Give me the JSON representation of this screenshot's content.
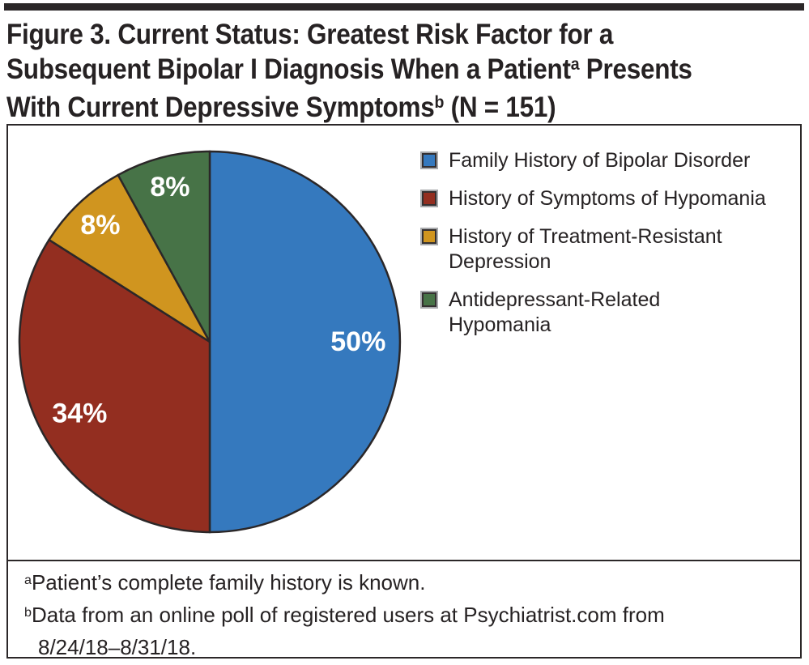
{
  "title": {
    "line1": "Figure 3. Current Status: Greatest Risk Factor for a",
    "line2_pre": "Subsequent Bipolar I Diagnosis When a Patient",
    "line2_sup": "a",
    "line2_post": " Presents",
    "line3_pre": "With Current Depressive Symptoms",
    "line3_sup": "b",
    "line3_post": " (N = 151)"
  },
  "colors": {
    "rule": "#2b2728",
    "box_border": "#2b2728",
    "title_text": "#262223",
    "slice_label_text": "#ffffff",
    "swatch_border": "#a7a9ac"
  },
  "chart_data": {
    "type": "pie",
    "title": "Figure 3. Current Status: Greatest Risk Factor for a Subsequent Bipolar I Diagnosis When a Patient Presents With Current Depressive Symptoms (N = 151)",
    "n_label": "N = 151",
    "direction": "clockwise",
    "start_angle_deg_from_top": 0,
    "legend_position": "right",
    "value_suffix": "%",
    "outline_color": "#2b2728",
    "slices": [
      {
        "label": "Family History of Bipolar Disorder",
        "value": 50,
        "color": "#3579be"
      },
      {
        "label": "History of Symptoms of Hypomania",
        "value": 34,
        "color": "#932e20"
      },
      {
        "label": "History of Treatment-Resistant Depression",
        "value": 8,
        "color": "#d0951f"
      },
      {
        "label": "Antidepressant-Related Hypomania",
        "value": 8,
        "color": "#477347"
      }
    ]
  },
  "legend": {
    "items": [
      {
        "color": "#3579be",
        "label": "Family History of Bipolar Disorder",
        "label2": ""
      },
      {
        "color": "#932e20",
        "label": "History of Symptoms of Hypomania",
        "label2": ""
      },
      {
        "color": "#d0951f",
        "label": "History of Treatment-Resistant",
        "label2": "Depression"
      },
      {
        "color": "#477347",
        "label": "Antidepressant-Related",
        "label2": "Hypomania"
      }
    ]
  },
  "footnotes": {
    "f1_sup": "a",
    "f1_text": "Patient’s complete family history is known.",
    "f2_sup": "b",
    "f2_text": "Data from an online poll of registered users at Psychiatrist.com from",
    "f2_cont": "8/24/18–8/31/18."
  }
}
